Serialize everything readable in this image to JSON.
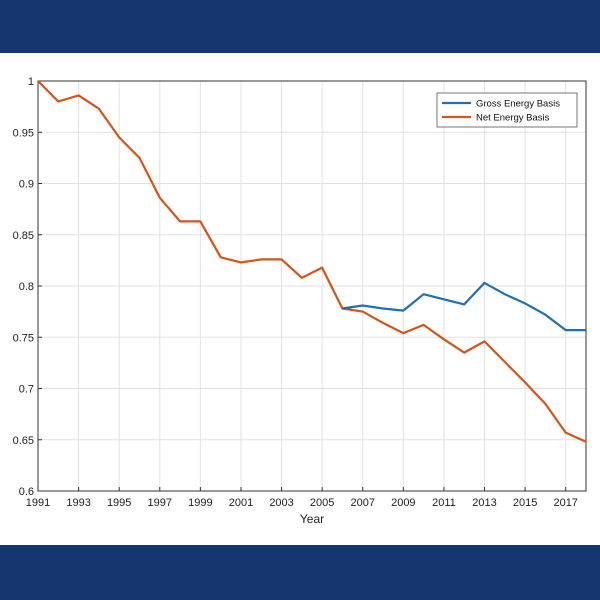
{
  "colors": {
    "page_background": "#15366f",
    "panel_background": "#ffffff",
    "grid": "#e2e2e2",
    "axis": "#333333",
    "legend_border": "#555555"
  },
  "chart_data": {
    "type": "line",
    "xlabel": "Year",
    "ylabel": "",
    "xlim": [
      1991,
      2018
    ],
    "ylim": [
      0.6,
      1.0
    ],
    "xticks": [
      1991,
      1993,
      1995,
      1997,
      1999,
      2001,
      2003,
      2005,
      2007,
      2009,
      2011,
      2013,
      2015,
      2017
    ],
    "yticks": [
      0.6,
      0.65,
      0.7,
      0.75,
      0.8,
      0.85,
      0.9,
      0.95,
      1
    ],
    "grid": true,
    "legend_position": "top-right",
    "series": [
      {
        "name": "Gross Energy Basis",
        "color": "#1f6fb4",
        "x": [
          2006,
          2007,
          2008,
          2009,
          2010,
          2011,
          2012,
          2013,
          2014,
          2015,
          2016,
          2017,
          2018
        ],
        "values": [
          0.778,
          0.781,
          0.778,
          0.776,
          0.792,
          0.787,
          0.782,
          0.803,
          0.792,
          0.783,
          0.772,
          0.757,
          0.757
        ]
      },
      {
        "name": "Net Energy Basis",
        "color": "#d4541a",
        "x": [
          1991,
          1992,
          1993,
          1994,
          1995,
          1996,
          1997,
          1998,
          1999,
          2000,
          2001,
          2002,
          2003,
          2004,
          2005,
          2006,
          2007,
          2008,
          2009,
          2010,
          2011,
          2012,
          2013,
          2014,
          2015,
          2016,
          2017,
          2018
        ],
        "values": [
          1.0,
          0.98,
          0.986,
          0.973,
          0.945,
          0.925,
          0.886,
          0.863,
          0.863,
          0.828,
          0.823,
          0.826,
          0.826,
          0.808,
          0.818,
          0.778,
          0.775,
          0.764,
          0.754,
          0.762,
          0.748,
          0.735,
          0.746,
          0.726,
          0.706,
          0.685,
          0.657,
          0.648
        ]
      }
    ]
  }
}
